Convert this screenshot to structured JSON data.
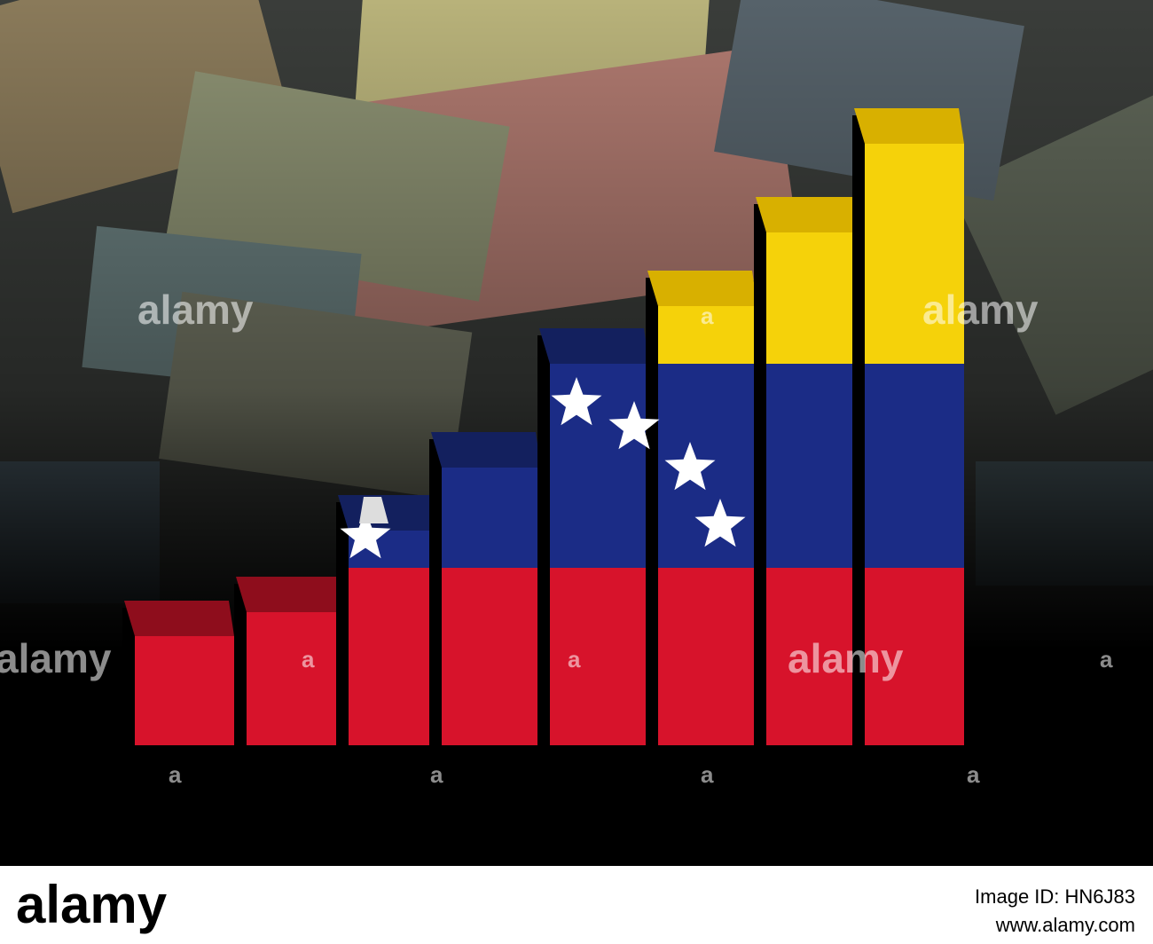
{
  "watermarks": {
    "word": "alamy",
    "letter": "a"
  },
  "footer": {
    "logo": "alamy",
    "image_id": "Image ID: HN6J83",
    "url": "www.alamy.com"
  }
}
